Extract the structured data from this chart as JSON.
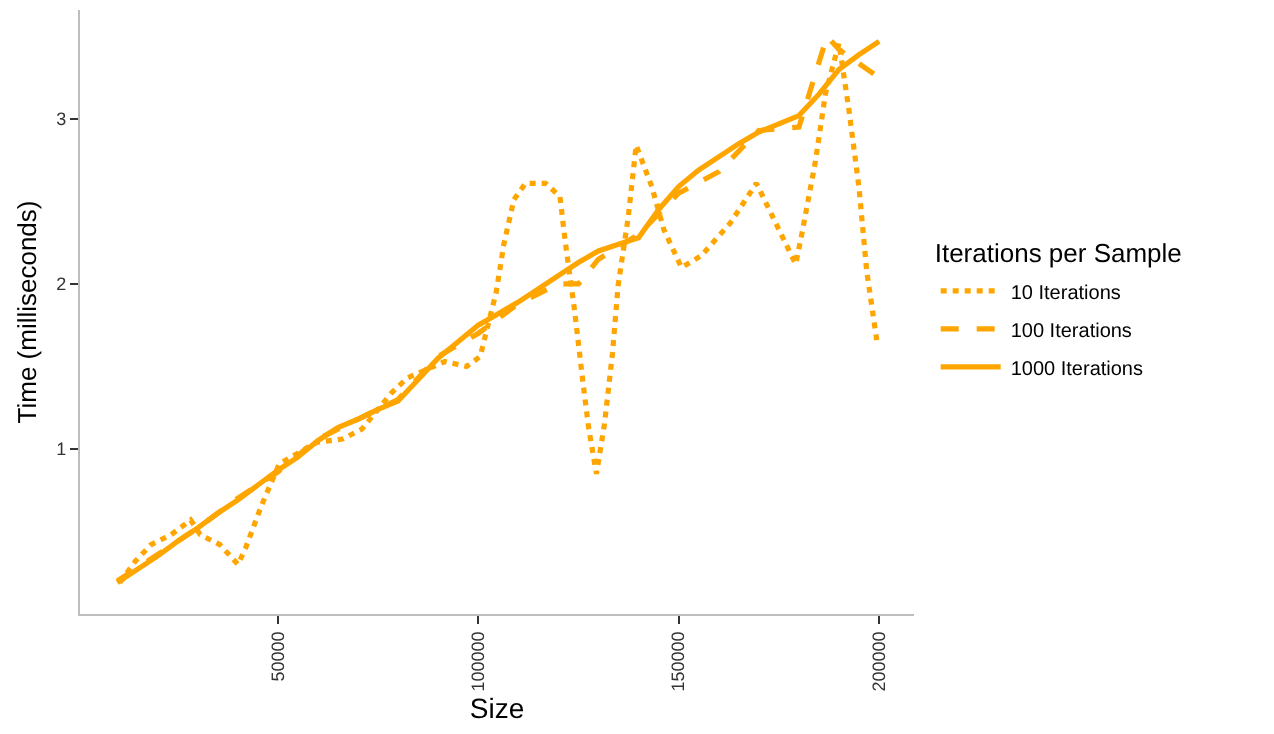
{
  "chart_data": {
    "type": "line",
    "xlabel": "Size",
    "ylabel": "Time (milliseconds)",
    "legend_title": "Iterations per Sample",
    "xlim": [
      700,
      208700
    ],
    "xticks": [
      50000,
      100000,
      150000,
      200000
    ],
    "ylim": [
      0,
      3.66
    ],
    "yticks": [
      1,
      2,
      3
    ],
    "grid": false,
    "legend": "right",
    "marker": "none",
    "series": [
      {
        "name": "10 Iterations",
        "color": "#ffa500",
        "line_style": "dotted",
        "x": [
          10600,
          14500,
          18400,
          23400,
          28300,
          30700,
          35600,
          40100,
          42000,
          44000,
          46000,
          50400,
          59700,
          66100,
          71000,
          78400,
          82300,
          91700,
          97100,
          100500,
          104500,
          106400,
          108900,
          111800,
          116800,
          120400,
          121700,
          124100,
          126100,
          127600,
          129500,
          131500,
          133500,
          134900,
          137400,
          139400,
          143300,
          146300,
          150700,
          155600,
          162900,
          169400,
          174200,
          179200,
          180700,
          184100,
          186600,
          190000,
          192500,
          195000,
          196900,
          199400
        ],
        "values": [
          0.19,
          0.32,
          0.42,
          0.48,
          0.57,
          0.48,
          0.42,
          0.3,
          0.4,
          0.53,
          0.66,
          0.91,
          1.04,
          1.06,
          1.12,
          1.34,
          1.43,
          1.53,
          1.5,
          1.56,
          1.95,
          2.24,
          2.51,
          2.61,
          2.61,
          2.53,
          2.26,
          1.83,
          1.41,
          1.12,
          0.85,
          1.15,
          1.58,
          1.99,
          2.4,
          2.84,
          2.59,
          2.33,
          2.1,
          2.17,
          2.37,
          2.61,
          2.37,
          2.12,
          2.3,
          2.74,
          3.15,
          3.46,
          3.05,
          2.58,
          2.08,
          1.66
        ]
      },
      {
        "name": "100 Iterations",
        "color": "#ffa500",
        "line_style": "dashed",
        "x": [
          10000,
          20000,
          30000,
          40000,
          50000,
          60000,
          70000,
          80000,
          90000,
          100000,
          110000,
          120000,
          125000,
          130000,
          140000,
          150000,
          160000,
          170000,
          180000,
          187000,
          190000,
          200000
        ],
        "values": [
          0.2,
          0.36,
          0.52,
          0.7,
          0.86,
          1.06,
          1.18,
          1.3,
          1.56,
          1.7,
          1.88,
          2.0,
          2.0,
          2.15,
          2.3,
          2.55,
          2.68,
          2.93,
          2.95,
          3.5,
          3.42,
          3.25
        ]
      },
      {
        "name": "1000 Iterations",
        "color": "#ffa500",
        "line_style": "solid",
        "x": [
          10000,
          15000,
          20000,
          25000,
          30000,
          35000,
          40000,
          45000,
          50000,
          55000,
          60000,
          65000,
          70000,
          75000,
          80000,
          85000,
          90000,
          95000,
          100000,
          105000,
          110000,
          115000,
          120000,
          125000,
          130000,
          135000,
          140000,
          145000,
          150000,
          155000,
          160000,
          165000,
          170000,
          175000,
          180000,
          185000,
          190000,
          195000,
          200000
        ],
        "values": [
          0.19,
          0.27,
          0.35,
          0.44,
          0.52,
          0.61,
          0.69,
          0.78,
          0.87,
          0.95,
          1.05,
          1.13,
          1.18,
          1.24,
          1.29,
          1.42,
          1.55,
          1.65,
          1.75,
          1.82,
          1.89,
          1.97,
          2.05,
          2.13,
          2.2,
          2.24,
          2.28,
          2.45,
          2.59,
          2.69,
          2.77,
          2.85,
          2.92,
          2.97,
          3.02,
          3.15,
          3.3,
          3.39,
          3.47
        ]
      }
    ]
  }
}
